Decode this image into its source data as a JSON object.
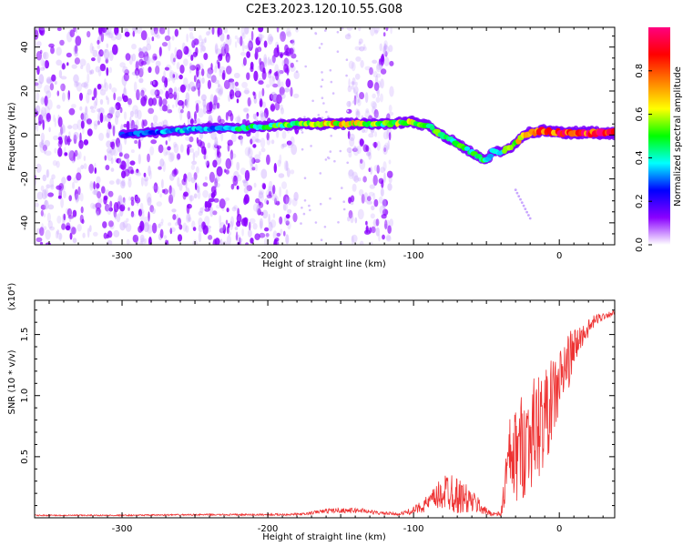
{
  "figure": {
    "title": "C2E3.2023.120.10.55.G08"
  },
  "chart_data": [
    {
      "type": "heatmap",
      "xlabel": "Height of straight line (km)",
      "ylabel": "Frequency (Hz)",
      "xlim": [
        -360,
        38
      ],
      "ylim": [
        -50,
        49
      ],
      "x_ticks": [
        -300,
        -200,
        -100,
        0
      ],
      "x_tick_labels": [
        "-300",
        "-200",
        "-100",
        "0"
      ],
      "y_ticks": [
        -40,
        -20,
        0,
        20,
        40
      ],
      "y_tick_labels": [
        "-40",
        "-20",
        "0",
        "20",
        "40"
      ],
      "grid": false,
      "colorbar": {
        "label": "Normalized spectral amplitude",
        "range": [
          0.0,
          1.0
        ],
        "ticks": [
          0.0,
          0.2,
          0.4,
          0.6,
          0.8
        ],
        "tick_labels": [
          "0.0",
          "0.2",
          "0.4",
          "0.6",
          "0.8"
        ],
        "colors": [
          "#ffffff",
          "#8a00ff",
          "#0000ff",
          "#00ffff",
          "#00ff00",
          "#ffff00",
          "#ff8000",
          "#ff0000",
          "#ff0080"
        ]
      },
      "noise_regions": [
        {
          "x_range": [
            -360,
            -180
          ],
          "level": 0.25
        },
        {
          "x_range": [
            -145,
            -115
          ],
          "level": 0.2
        }
      ],
      "ridge": {
        "x": [
          -300,
          -280,
          -260,
          -240,
          -220,
          -200,
          -180,
          -160,
          -140,
          -120,
          -100,
          -90,
          -80,
          -70,
          -60,
          -50,
          -45,
          -40,
          -35,
          -30,
          -25,
          -20,
          -10,
          0,
          10,
          20,
          38
        ],
        "frequency": [
          0,
          1,
          2,
          3,
          3,
          4,
          5,
          5,
          5,
          5,
          6,
          4,
          0,
          -4,
          -8,
          -12,
          -7,
          -8,
          -6,
          -4,
          0,
          1,
          2,
          1,
          1,
          1,
          1
        ],
        "amplitude": [
          0.25,
          0.3,
          0.35,
          0.35,
          0.4,
          0.45,
          0.55,
          0.7,
          0.6,
          0.5,
          0.6,
          0.55,
          0.5,
          0.5,
          0.45,
          0.45,
          0.4,
          0.45,
          0.5,
          0.6,
          0.7,
          0.75,
          0.8,
          0.85,
          0.9,
          0.9,
          0.95
        ]
      },
      "tail": {
        "x": [
          -30,
          -20
        ],
        "frequency": [
          -25,
          -38
        ]
      }
    },
    {
      "type": "line",
      "xlabel": "Height of straight line (km)",
      "ylabel": "SNR (10 * v/v)",
      "y_multiplier": "(x10⁴)",
      "xlim": [
        -360,
        38
      ],
      "ylim": [
        0,
        1.78
      ],
      "x_ticks": [
        -300,
        -200,
        -100,
        0
      ],
      "x_tick_labels": [
        "-300",
        "-200",
        "-100",
        "0"
      ],
      "y_ticks": [
        0.5,
        1.0,
        1.5
      ],
      "y_tick_labels": [
        "0.5",
        "1.0",
        "1.5"
      ],
      "grid": false,
      "series": [
        {
          "color": "#ee3333",
          "x": [
            -360,
            -300,
            -250,
            -200,
            -175,
            -165,
            -155,
            -145,
            -135,
            -125,
            -110,
            -100,
            -90,
            -80,
            -75,
            -70,
            -65,
            -60,
            -55,
            -50,
            -45,
            -40,
            -35,
            -30,
            -25,
            -20,
            -15,
            -10,
            -5,
            0,
            5,
            10,
            15,
            20,
            25,
            30,
            38
          ],
          "baseline": [
            0.02,
            0.02,
            0.025,
            0.025,
            0.03,
            0.05,
            0.06,
            0.06,
            0.06,
            0.04,
            0.03,
            0.06,
            0.12,
            0.2,
            0.24,
            0.18,
            0.16,
            0.13,
            0.1,
            0.05,
            0.03,
            0.03,
            0.45,
            0.5,
            0.6,
            0.68,
            0.75,
            0.82,
            0.95,
            1.1,
            1.25,
            1.38,
            1.48,
            1.55,
            1.62,
            1.65,
            1.68
          ],
          "amplitude": [
            0.005,
            0.005,
            0.006,
            0.008,
            0.01,
            0.015,
            0.02,
            0.02,
            0.02,
            0.015,
            0.01,
            0.03,
            0.07,
            0.14,
            0.2,
            0.15,
            0.13,
            0.1,
            0.07,
            0.03,
            0.02,
            0.02,
            0.35,
            0.4,
            0.45,
            0.45,
            0.45,
            0.4,
            0.35,
            0.3,
            0.25,
            0.18,
            0.1,
            0.07,
            0.05,
            0.03,
            0.02
          ]
        }
      ]
    }
  ]
}
